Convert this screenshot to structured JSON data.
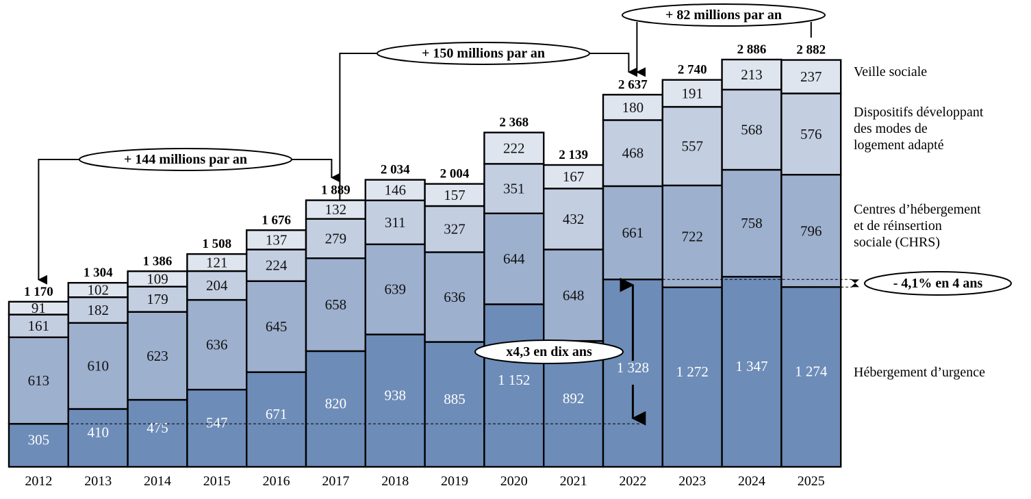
{
  "chart_data": {
    "type": "bar",
    "stacked": true,
    "title": "",
    "xlabel": "",
    "ylabel": "",
    "unit": "millions d'euros",
    "ylim": [
      0,
      3000
    ],
    "grid": false,
    "legend_position": "right",
    "categories": [
      "2012",
      "2013",
      "2014",
      "2015",
      "2016",
      "2017",
      "2018",
      "2019",
      "2020",
      "2021",
      "2022",
      "2023",
      "2024",
      "2025"
    ],
    "series": [
      {
        "name": "Hébergement d’urgence",
        "color": "#6d8cb8",
        "label_color": "#ffffff",
        "values": [
          305,
          410,
          475,
          547,
          671,
          820,
          938,
          885,
          1152,
          892,
          1328,
          1272,
          1347,
          1274
        ]
      },
      {
        "name": "Centres d’hébergement et de réinsertion sociale (CHRS)",
        "color": "#9db0ce",
        "label_color": "#111111",
        "values": [
          613,
          610,
          623,
          636,
          645,
          658,
          639,
          636,
          644,
          648,
          661,
          722,
          758,
          796
        ]
      },
      {
        "name": "Dispositifs développant des modes de logement adapté",
        "color": "#c3cee1",
        "label_color": "#111111",
        "values": [
          161,
          182,
          179,
          204,
          224,
          279,
          311,
          327,
          351,
          432,
          468,
          557,
          568,
          576
        ]
      },
      {
        "name": "Veille sociale",
        "color": "#dfe5ef",
        "label_color": "#111111",
        "values": [
          91,
          102,
          109,
          121,
          137,
          132,
          146,
          157,
          222,
          167,
          180,
          191,
          213,
          237
        ]
      }
    ],
    "totals": [
      "1 170",
      "1 304",
      "1 386",
      "1 508",
      "1 676",
      "1 889",
      "2 034",
      "2 004",
      "2 368",
      "2 139",
      "2 637",
      "2 740",
      "2 886",
      "2 882"
    ],
    "segment_labels": [
      [
        "305",
        "410",
        "475",
        "547",
        "671",
        "820",
        "938",
        "885",
        "1 152",
        "892",
        "1 328",
        "1 272",
        "1 347",
        "1 274"
      ],
      [
        "613",
        "610",
        "623",
        "636",
        "645",
        "658",
        "639",
        "636",
        "644",
        "648",
        "661",
        "722",
        "758",
        "796"
      ],
      [
        "161",
        "182",
        "179",
        "204",
        "224",
        "279",
        "311",
        "327",
        "351",
        "432",
        "468",
        "557",
        "568",
        "576"
      ],
      [
        "91",
        "102",
        "109",
        "121",
        "137",
        "132",
        "146",
        "157",
        "222",
        "167",
        "180",
        "191",
        "213",
        "237"
      ]
    ],
    "legend": [
      {
        "lines": [
          "Veille sociale"
        ],
        "series": 3
      },
      {
        "lines": [
          "Dispositifs développant",
          "des modes de",
          "logement adapté"
        ],
        "series": 2
      },
      {
        "lines": [
          "Centres d’hébergement",
          "et de réinsertion",
          "sociale (CHRS)"
        ],
        "series": 1
      },
      {
        "lines": [
          "Hébergement d’urgence"
        ],
        "series": 0
      }
    ],
    "annotations": [
      {
        "text": "+ 144 millions par an",
        "from": "2012",
        "to": "2017"
      },
      {
        "text": "+ 150 millions par an",
        "from": "2017",
        "to": "2022"
      },
      {
        "text": "+ 82 millions par an",
        "from": "2022",
        "to": "2025"
      },
      {
        "text": "x4,3 en dix ans",
        "from": "2012",
        "to": "2022",
        "series": 0
      },
      {
        "text": "- 4,1% en 4 ans",
        "from": "2022",
        "to": "2025",
        "series": 0
      }
    ]
  }
}
